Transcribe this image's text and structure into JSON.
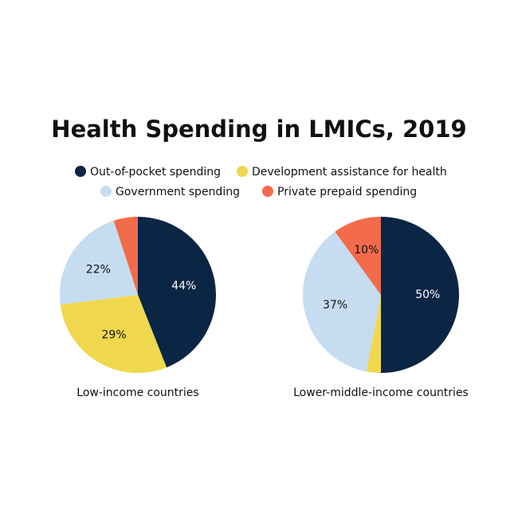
{
  "chart_data": {
    "type": "pie",
    "title": "Health Spending in LMICs, 2019",
    "categories": [
      "Out-of-pocket spending",
      "Development assistance for health",
      "Government spending",
      "Private prepaid spending"
    ],
    "colors": [
      "#0b2545",
      "#f0d84e",
      "#c6dcf1",
      "#f26b4a"
    ],
    "series": [
      {
        "name": "Low-income countries",
        "values": [
          44,
          29,
          22,
          5
        ],
        "value_labels": [
          "44%",
          "29%",
          "22%",
          null
        ]
      },
      {
        "name": "Lower-middle-income countries",
        "values": [
          50,
          3,
          37,
          10
        ],
        "value_labels": [
          "50%",
          null,
          "37%",
          "10%"
        ]
      }
    ]
  }
}
